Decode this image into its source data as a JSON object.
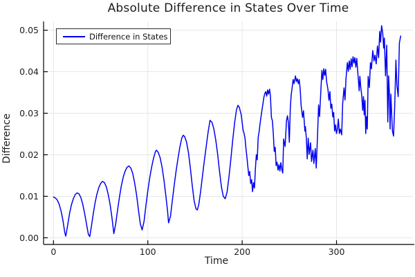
{
  "chart_data": {
    "type": "line",
    "title": "Absolute Difference in States Over Time",
    "xlabel": "Time",
    "ylabel": "Difference",
    "xlim": [
      -10.5,
      381
    ],
    "ylim": [
      -0.0016,
      0.0521
    ],
    "xticks": [
      0,
      100,
      200,
      300
    ],
    "xticklabels": [
      "0",
      "100",
      "200",
      "300"
    ],
    "yticks": [
      0.0,
      0.01,
      0.02,
      0.03,
      0.04,
      0.05
    ],
    "yticklabels": [
      "0.00",
      "0.01",
      "0.02",
      "0.03",
      "0.04",
      "0.05"
    ],
    "grid": true,
    "legend_position": "top-left",
    "colors": {
      "series": "#0000f0",
      "grid": "#e6e6e6",
      "spine": "#000000",
      "text": "#1c1c1c"
    },
    "series": [
      {
        "name": "Difference in States",
        "color": "#0000f0",
        "points": [
          [
            0,
            0.0098
          ],
          [
            2,
            0.0096
          ],
          [
            4,
            0.0091
          ],
          [
            6,
            0.0081
          ],
          [
            8,
            0.0065
          ],
          [
            10,
            0.0042
          ],
          [
            12,
            0.0012
          ],
          [
            13,
            0.0004
          ],
          [
            15,
            0.003
          ],
          [
            17,
            0.0058
          ],
          [
            19,
            0.0079
          ],
          [
            21,
            0.0094
          ],
          [
            23,
            0.0104
          ],
          [
            25,
            0.0108
          ],
          [
            27,
            0.0106
          ],
          [
            29,
            0.0097
          ],
          [
            31,
            0.0081
          ],
          [
            33,
            0.0059
          ],
          [
            35,
            0.0033
          ],
          [
            37,
            0.0008
          ],
          [
            38.5,
            0.0003
          ],
          [
            40,
            0.0025
          ],
          [
            42,
            0.0055
          ],
          [
            44,
            0.0083
          ],
          [
            46,
            0.0105
          ],
          [
            48,
            0.0121
          ],
          [
            50,
            0.0131
          ],
          [
            52,
            0.0136
          ],
          [
            54,
            0.0133
          ],
          [
            56,
            0.0123
          ],
          [
            58,
            0.0105
          ],
          [
            60,
            0.008
          ],
          [
            62,
            0.0048
          ],
          [
            64,
            0.001
          ],
          [
            66,
            0.0034
          ],
          [
            68,
            0.0068
          ],
          [
            70,
            0.0099
          ],
          [
            72,
            0.0126
          ],
          [
            74,
            0.0147
          ],
          [
            76,
            0.0161
          ],
          [
            78,
            0.017
          ],
          [
            80,
            0.0173
          ],
          [
            82,
            0.0168
          ],
          [
            84,
            0.0155
          ],
          [
            86,
            0.0133
          ],
          [
            88,
            0.0104
          ],
          [
            90,
            0.0068
          ],
          [
            92,
            0.0034
          ],
          [
            94,
            0.0019
          ],
          [
            96,
            0.004
          ],
          [
            98,
            0.0078
          ],
          [
            100,
            0.0113
          ],
          [
            102,
            0.0144
          ],
          [
            104,
            0.017
          ],
          [
            106,
            0.0191
          ],
          [
            108,
            0.0207
          ],
          [
            109,
            0.0211
          ],
          [
            111,
            0.0206
          ],
          [
            113,
            0.0193
          ],
          [
            115,
            0.0171
          ],
          [
            117,
            0.0141
          ],
          [
            119,
            0.0104
          ],
          [
            121,
            0.0062
          ],
          [
            122,
            0.0036
          ],
          [
            124,
            0.0052
          ],
          [
            126,
            0.009
          ],
          [
            128,
            0.0127
          ],
          [
            130,
            0.0161
          ],
          [
            132,
            0.0192
          ],
          [
            134,
            0.0219
          ],
          [
            136,
            0.024
          ],
          [
            137.5,
            0.0247
          ],
          [
            139,
            0.0244
          ],
          [
            141,
            0.0231
          ],
          [
            143,
            0.0206
          ],
          [
            145,
            0.017
          ],
          [
            147,
            0.0128
          ],
          [
            149,
            0.009
          ],
          [
            151,
            0.007
          ],
          [
            152.5,
            0.0067
          ],
          [
            154,
            0.008
          ],
          [
            156,
            0.0112
          ],
          [
            158,
            0.015
          ],
          [
            160,
            0.0188
          ],
          [
            162,
            0.0222
          ],
          [
            164,
            0.0256
          ],
          [
            166,
            0.0283
          ],
          [
            168,
            0.0278
          ],
          [
            170,
            0.0262
          ],
          [
            172,
            0.0236
          ],
          [
            174,
            0.0201
          ],
          [
            176,
            0.016
          ],
          [
            178,
            0.0123
          ],
          [
            180,
            0.01
          ],
          [
            182,
            0.0094
          ],
          [
            184,
            0.011
          ],
          [
            186,
            0.0146
          ],
          [
            188,
            0.019
          ],
          [
            190,
            0.0236
          ],
          [
            192,
            0.0277
          ],
          [
            194,
            0.0308
          ],
          [
            195.5,
            0.0319
          ],
          [
            197,
            0.0314
          ],
          [
            199,
            0.0296
          ],
          [
            201,
            0.0259
          ],
          [
            202,
            0.0252
          ],
          [
            203,
            0.024
          ],
          [
            204,
            0.0215
          ],
          [
            205,
            0.0196
          ],
          [
            206,
            0.0172
          ],
          [
            207,
            0.015
          ],
          [
            208,
            0.016
          ],
          [
            209,
            0.0131
          ],
          [
            210,
            0.014
          ],
          [
            211,
            0.0111
          ],
          [
            212,
            0.0133
          ],
          [
            213,
            0.012
          ],
          [
            214,
            0.0165
          ],
          [
            215,
            0.02
          ],
          [
            216,
            0.0188
          ],
          [
            217,
            0.0242
          ],
          [
            218,
            0.0256
          ],
          [
            219,
            0.0275
          ],
          [
            220,
            0.0292
          ],
          [
            221,
            0.0308
          ],
          [
            222,
            0.0322
          ],
          [
            223,
            0.0338
          ],
          [
            224,
            0.0348
          ],
          [
            225,
            0.0352
          ],
          [
            226,
            0.0341
          ],
          [
            227,
            0.0356
          ],
          [
            228,
            0.0346
          ],
          [
            229,
            0.0358
          ],
          [
            230,
            0.0341
          ],
          [
            231,
            0.029
          ],
          [
            232,
            0.0282
          ],
          [
            233,
            0.0252
          ],
          [
            234,
            0.0208
          ],
          [
            235,
            0.0218
          ],
          [
            236,
            0.0174
          ],
          [
            237,
            0.0182
          ],
          [
            238,
            0.0163
          ],
          [
            239,
            0.0176
          ],
          [
            240,
            0.0161
          ],
          [
            241,
            0.0181
          ],
          [
            242,
            0.0166
          ],
          [
            243,
            0.0156
          ],
          [
            244,
            0.0238
          ],
          [
            245.5,
            0.022
          ],
          [
            247,
            0.0282
          ],
          [
            248,
            0.0294
          ],
          [
            249,
            0.0277
          ],
          [
            250,
            0.023
          ],
          [
            251,
            0.0312
          ],
          [
            252,
            0.0344
          ],
          [
            253,
            0.0362
          ],
          [
            254,
            0.0381
          ],
          [
            255,
            0.0371
          ],
          [
            256.5,
            0.039
          ],
          [
            257.5,
            0.0376
          ],
          [
            258.5,
            0.0383
          ],
          [
            259.5,
            0.0371
          ],
          [
            260.5,
            0.0381
          ],
          [
            261.5,
            0.0358
          ],
          [
            262.5,
            0.0318
          ],
          [
            264,
            0.029
          ],
          [
            265,
            0.0306
          ],
          [
            266.5,
            0.0257
          ],
          [
            267,
            0.0268
          ],
          [
            268,
            0.024
          ],
          [
            269,
            0.019
          ],
          [
            270,
            0.024
          ],
          [
            271,
            0.0201
          ],
          [
            272.5,
            0.0229
          ],
          [
            273.5,
            0.0184
          ],
          [
            275,
            0.0211
          ],
          [
            276,
            0.0179
          ],
          [
            277.5,
            0.0215
          ],
          [
            278.5,
            0.0168
          ],
          [
            280,
            0.0251
          ],
          [
            281,
            0.032
          ],
          [
            282,
            0.0292
          ],
          [
            283.5,
            0.0358
          ],
          [
            284.5,
            0.0403
          ],
          [
            285.5,
            0.0381
          ],
          [
            286.5,
            0.0407
          ],
          [
            287.5,
            0.0391
          ],
          [
            288.5,
            0.0406
          ],
          [
            289.5,
            0.0376
          ],
          [
            291,
            0.0357
          ],
          [
            292,
            0.0331
          ],
          [
            293,
            0.0352
          ],
          [
            294,
            0.0312
          ],
          [
            295,
            0.0322
          ],
          [
            296,
            0.0291
          ],
          [
            297,
            0.0302
          ],
          [
            298,
            0.0257
          ],
          [
            299,
            0.0272
          ],
          [
            300,
            0.0251
          ],
          [
            301,
            0.0262
          ],
          [
            302,
            0.0286
          ],
          [
            303,
            0.0251
          ],
          [
            304,
            0.0262
          ],
          [
            305.5,
            0.0248
          ],
          [
            306.5,
            0.0322
          ],
          [
            308,
            0.0361
          ],
          [
            309,
            0.0332
          ],
          [
            310,
            0.0382
          ],
          [
            311.5,
            0.0422
          ],
          [
            312.5,
            0.0401
          ],
          [
            313.5,
            0.0426
          ],
          [
            314.5,
            0.0406
          ],
          [
            315.5,
            0.0431
          ],
          [
            316.5,
            0.0412
          ],
          [
            317.5,
            0.0436
          ],
          [
            318.5,
            0.0421
          ],
          [
            319.5,
            0.0434
          ],
          [
            320.5,
            0.0411
          ],
          [
            321.5,
            0.0432
          ],
          [
            322.5,
            0.0401
          ],
          [
            324,
            0.0354
          ],
          [
            324.8,
            0.0389
          ],
          [
            325.8,
            0.0361
          ],
          [
            326.8,
            0.0341
          ],
          [
            327.8,
            0.0307
          ],
          [
            328.6,
            0.034
          ],
          [
            329.4,
            0.0296
          ],
          [
            330.2,
            0.0331
          ],
          [
            331,
            0.0251
          ],
          [
            331.8,
            0.0292
          ],
          [
            332.6,
            0.0262
          ],
          [
            333.6,
            0.0389
          ],
          [
            334.8,
            0.0362
          ],
          [
            336,
            0.0422
          ],
          [
            337,
            0.0407
          ],
          [
            338.4,
            0.0451
          ],
          [
            339.7,
            0.0426
          ],
          [
            340.8,
            0.044
          ],
          [
            342.1,
            0.0419
          ],
          [
            343.4,
            0.0462
          ],
          [
            344.6,
            0.0434
          ],
          [
            345.8,
            0.0497
          ],
          [
            346.7,
            0.0471
          ],
          [
            347.8,
            0.0511
          ],
          [
            349,
            0.0492
          ],
          [
            350,
            0.0457
          ],
          [
            350.7,
            0.0481
          ],
          [
            352,
            0.039
          ],
          [
            353.2,
            0.0464
          ],
          [
            354.4,
            0.0279
          ],
          [
            355.2,
            0.039
          ],
          [
            356,
            0.0351
          ],
          [
            356.8,
            0.0262
          ],
          [
            357.6,
            0.0346
          ],
          [
            358.4,
            0.0301
          ],
          [
            359.3,
            0.0257
          ],
          [
            360.5,
            0.0245
          ],
          [
            361.7,
            0.0318
          ],
          [
            363,
            0.0428
          ],
          [
            364,
            0.0368
          ],
          [
            365.4,
            0.034
          ],
          [
            366.6,
            0.0469
          ],
          [
            368,
            0.0486
          ]
        ]
      }
    ]
  }
}
